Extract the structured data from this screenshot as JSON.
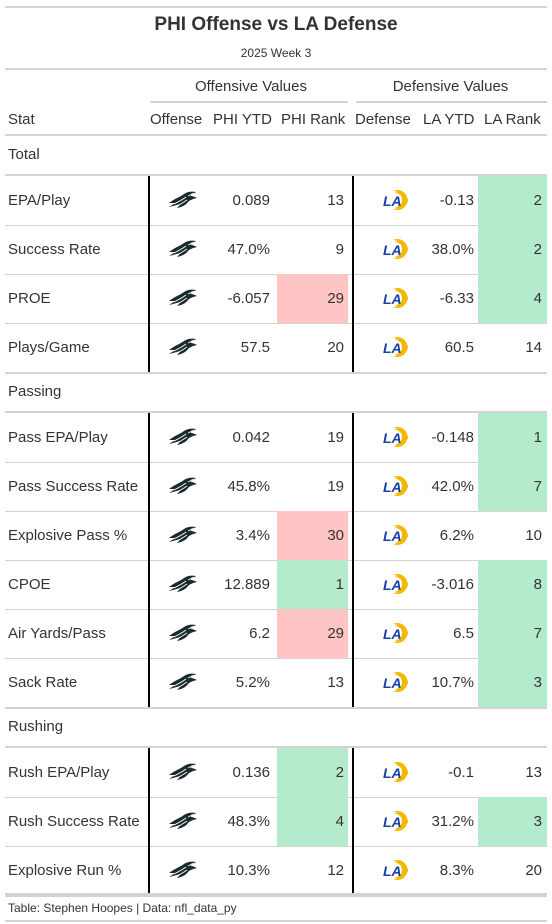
{
  "title": "PHI Offense vs LA Defense",
  "subtitle": "2025 Week 3",
  "spanners": {
    "offense": "Offensive Values",
    "defense": "Defensive Values"
  },
  "columns": {
    "stat": "Stat",
    "offense": "Offense",
    "off_ytd": "PHI YTD",
    "off_rank": "PHI Rank",
    "defense": "Defense",
    "def_ytd": "LA YTD",
    "def_rank": "LA Rank"
  },
  "colors": {
    "good": "#b3ebcc",
    "bad": "#ffc4c4",
    "eagles": "#1b2b2b",
    "rams_blue": "#1742a8",
    "rams_gold": "#f5b800"
  },
  "icons": {
    "offense": "eagles-logo-icon",
    "defense": "rams-logo-icon"
  },
  "groups": [
    {
      "label": "Total",
      "rows": [
        {
          "stat": "EPA/Play",
          "off_ytd": "0.089",
          "off_rank": "13",
          "off_hl": "",
          "def_ytd": "-0.13",
          "def_rank": "2",
          "def_hl": "good"
        },
        {
          "stat": "Success Rate",
          "off_ytd": "47.0%",
          "off_rank": "9",
          "off_hl": "",
          "def_ytd": "38.0%",
          "def_rank": "2",
          "def_hl": "good"
        },
        {
          "stat": "PROE",
          "off_ytd": "-6.057",
          "off_rank": "29",
          "off_hl": "bad",
          "def_ytd": "-6.33",
          "def_rank": "4",
          "def_hl": "good"
        },
        {
          "stat": "Plays/Game",
          "off_ytd": "57.5",
          "off_rank": "20",
          "off_hl": "",
          "def_ytd": "60.5",
          "def_rank": "14",
          "def_hl": ""
        }
      ]
    },
    {
      "label": "Passing",
      "rows": [
        {
          "stat": "Pass EPA/Play",
          "off_ytd": "0.042",
          "off_rank": "19",
          "off_hl": "",
          "def_ytd": "-0.148",
          "def_rank": "1",
          "def_hl": "good"
        },
        {
          "stat": "Pass Success Rate",
          "off_ytd": "45.8%",
          "off_rank": "19",
          "off_hl": "",
          "def_ytd": "42.0%",
          "def_rank": "7",
          "def_hl": "good"
        },
        {
          "stat": "Explosive Pass %",
          "off_ytd": "3.4%",
          "off_rank": "30",
          "off_hl": "bad",
          "def_ytd": "6.2%",
          "def_rank": "10",
          "def_hl": ""
        },
        {
          "stat": "CPOE",
          "off_ytd": "12.889",
          "off_rank": "1",
          "off_hl": "good",
          "def_ytd": "-3.016",
          "def_rank": "8",
          "def_hl": "good"
        },
        {
          "stat": "Air Yards/Pass",
          "off_ytd": "6.2",
          "off_rank": "29",
          "off_hl": "bad",
          "def_ytd": "6.5",
          "def_rank": "7",
          "def_hl": "good"
        },
        {
          "stat": "Sack Rate",
          "off_ytd": "5.2%",
          "off_rank": "13",
          "off_hl": "",
          "def_ytd": "10.7%",
          "def_rank": "3",
          "def_hl": "good"
        }
      ]
    },
    {
      "label": "Rushing",
      "rows": [
        {
          "stat": "Rush EPA/Play",
          "off_ytd": "0.136",
          "off_rank": "2",
          "off_hl": "good",
          "def_ytd": "-0.1",
          "def_rank": "13",
          "def_hl": ""
        },
        {
          "stat": "Rush Success Rate",
          "off_ytd": "48.3%",
          "off_rank": "4",
          "off_hl": "good",
          "def_ytd": "31.2%",
          "def_rank": "3",
          "def_hl": "good"
        },
        {
          "stat": "Explosive Run %",
          "off_ytd": "10.3%",
          "off_rank": "12",
          "off_hl": "",
          "def_ytd": "8.3%",
          "def_rank": "20",
          "def_hl": ""
        }
      ]
    }
  ],
  "footer": "Table: Stephen Hoopes | Data: nfl_data_py"
}
